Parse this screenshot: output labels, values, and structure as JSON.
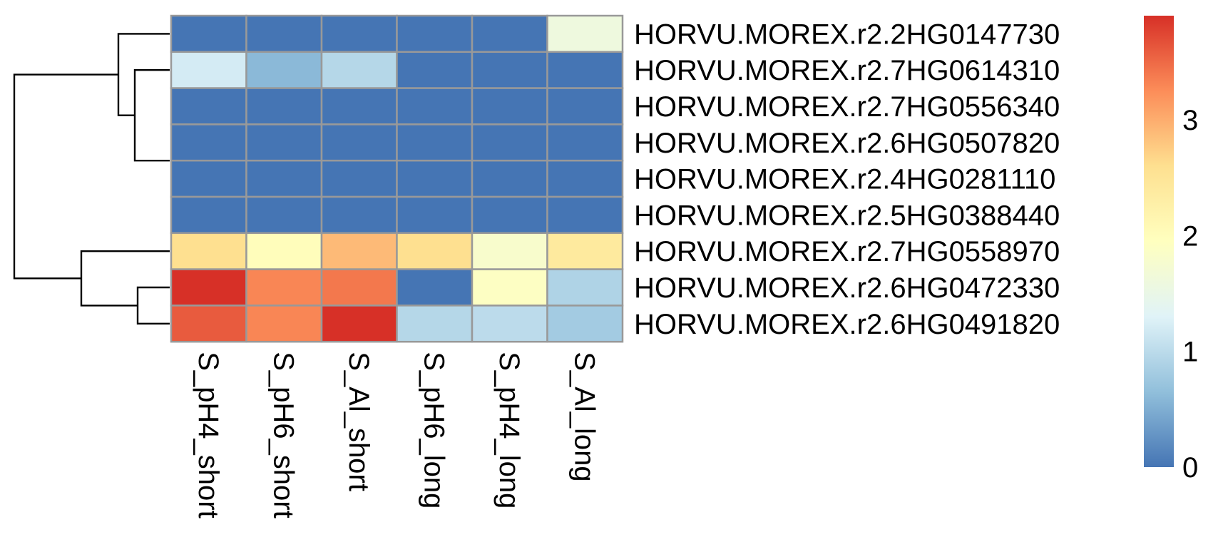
{
  "chart_data": {
    "type": "heatmap",
    "rows": [
      "HORVU.MOREX.r2.2HG0147730",
      "HORVU.MOREX.r2.7HG0614310",
      "HORVU.MOREX.r2.7HG0556340",
      "HORVU.MOREX.r2.6HG0507820",
      "HORVU.MOREX.r2.4HG0281110",
      "HORVU.MOREX.r2.5HG0388440",
      "HORVU.MOREX.r2.7HG0558970",
      "HORVU.MOREX.r2.6HG0472330",
      "HORVU.MOREX.r2.6HG0491820"
    ],
    "columns": [
      "S_pH4_short",
      "S_pH6_short",
      "S_Al_short",
      "S_pH6_long",
      "S_pH4_long",
      "S_Al_long"
    ],
    "values": [
      [
        0,
        0,
        0,
        0,
        0,
        1.6
      ],
      [
        1.2,
        0.6,
        0.95,
        0,
        0,
        0
      ],
      [
        0,
        0,
        0,
        0,
        0,
        0
      ],
      [
        0,
        0,
        0,
        0,
        0,
        0
      ],
      [
        0,
        0,
        0,
        0,
        0,
        0
      ],
      [
        0,
        0,
        0,
        0,
        0,
        0
      ],
      [
        2.6,
        2.0,
        2.9,
        2.6,
        1.8,
        2.4
      ],
      [
        3.9,
        3.3,
        3.4,
        0,
        1.9,
        0.9
      ],
      [
        3.6,
        3.3,
        3.9,
        0.95,
        1.0,
        0.8
      ]
    ],
    "colorbar": {
      "range": [
        0,
        3.9
      ],
      "ticks": [
        0,
        1,
        2,
        3
      ],
      "tick_labels": [
        "0",
        "1",
        "2",
        "3"
      ],
      "colors": [
        "#4575b4",
        "#91bfdb",
        "#e0f3f8",
        "#ffffbf",
        "#fee090",
        "#fc8d59",
        "#d73027"
      ]
    },
    "row_dendrogram": true,
    "legend": "right"
  }
}
